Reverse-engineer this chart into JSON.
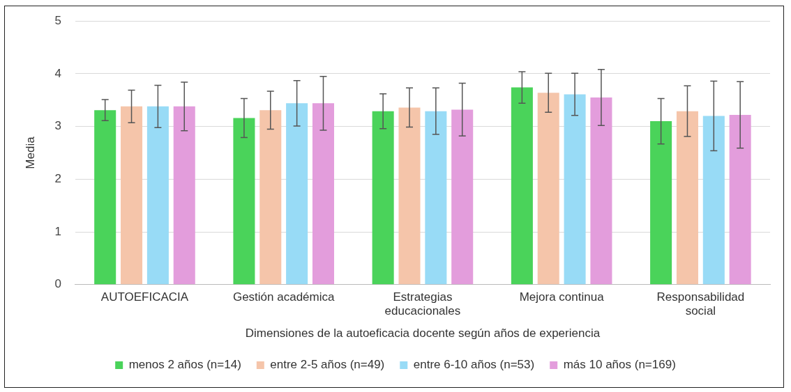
{
  "chart_data": {
    "type": "bar",
    "xlabel": "Dimensiones de la autoeficacia docente según años de experiencia",
    "ylabel": "Media",
    "categories": [
      "AUTOEFICACIA",
      "Gestión académica",
      "Estrategias educacionales",
      "Mejora continua",
      "Responsabilidad social"
    ],
    "series": [
      {
        "name": "menos 2 años (n=14)",
        "color": "#4ad35a",
        "values": [
          3.31,
          3.16,
          3.29,
          3.74,
          3.1
        ],
        "errors": [
          0.2,
          0.37,
          0.33,
          0.3,
          0.43
        ]
      },
      {
        "name": "entre 2-5 años (n=49)",
        "color": "#f5c5aa",
        "values": [
          3.38,
          3.31,
          3.36,
          3.64,
          3.29
        ],
        "errors": [
          0.31,
          0.36,
          0.37,
          0.37,
          0.48
        ]
      },
      {
        "name": "entre 6-10 años (n=53)",
        "color": "#98dbf6",
        "values": [
          3.38,
          3.44,
          3.29,
          3.61,
          3.2
        ],
        "errors": [
          0.4,
          0.43,
          0.44,
          0.4,
          0.66
        ]
      },
      {
        "name": "más 10 años (n=169)",
        "color": "#e39ddc",
        "values": [
          3.38,
          3.44,
          3.32,
          3.55,
          3.22
        ],
        "errors": [
          0.46,
          0.51,
          0.5,
          0.53,
          0.63
        ]
      }
    ],
    "ylim": [
      0,
      5
    ],
    "yticks": [
      0,
      1,
      2,
      3,
      4,
      5
    ],
    "grid": "y",
    "legend": "bottom"
  }
}
